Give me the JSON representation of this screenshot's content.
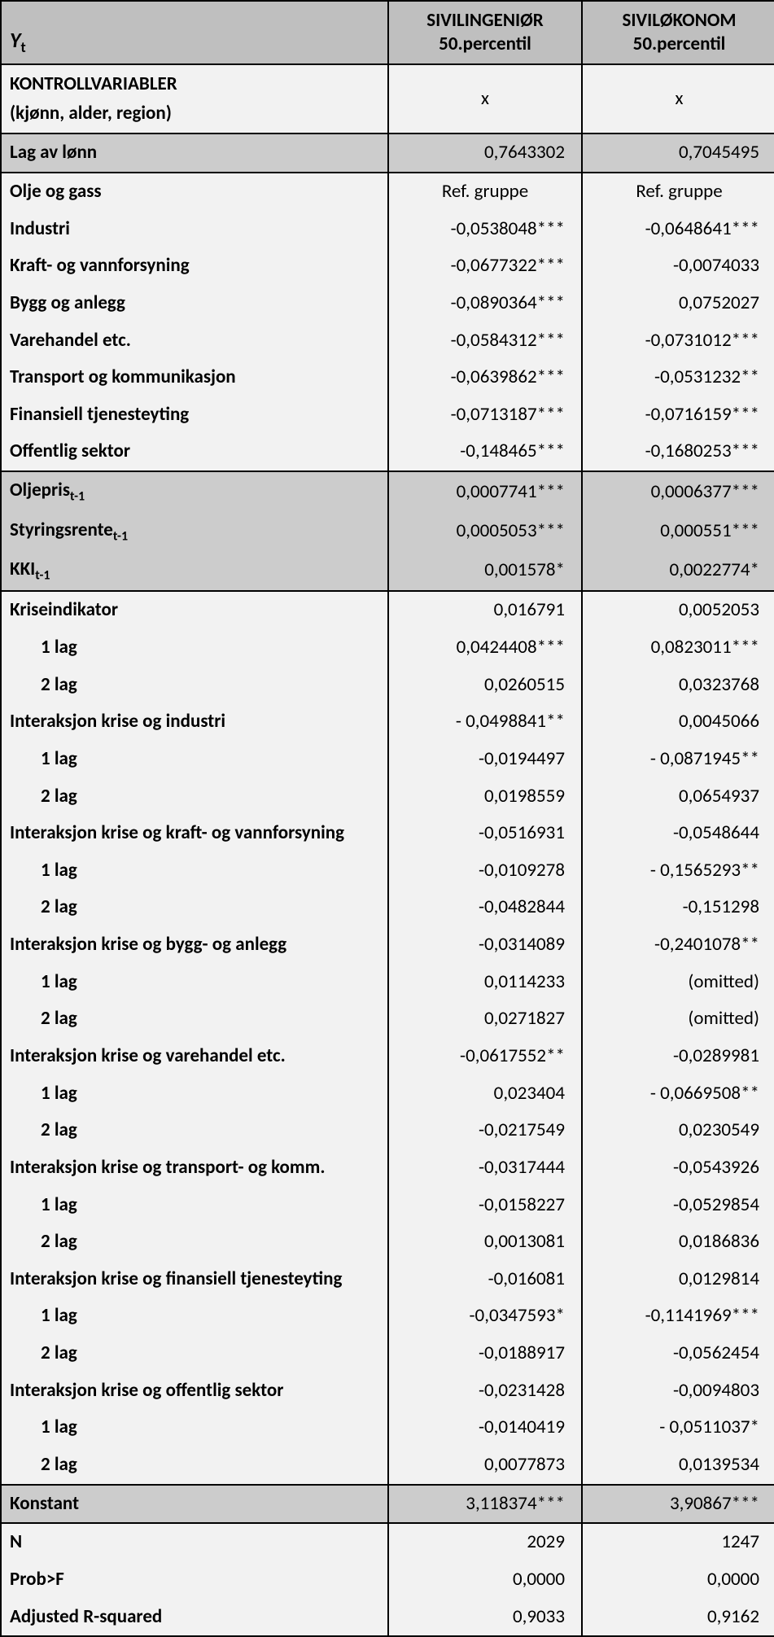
{
  "header": {
    "yt_label_html": "Y",
    "col1_line1": "SIVILINGENIØR",
    "col1_line2": "50.percentil",
    "col2_line1": "SIVILØKONOM",
    "col2_line2": "50.percentil"
  },
  "colors": {
    "header_bg": "#bfbfbf",
    "shade_bg": "#cccccc",
    "light_bg": "#f2f2f2",
    "border": "#000000",
    "text": "#000000"
  },
  "fonts": {
    "family": "Calibri, Arial, sans-serif",
    "size_body": 23,
    "size_yt": 26,
    "size_sub": 16,
    "weight_label": "bold",
    "weight_val": "normal"
  },
  "rows": [
    {
      "label_line1": "KONTROLLVARIABLER",
      "label_line2": "(kjønn, alder, region)",
      "c1": "x",
      "c2": "x",
      "shade": "light",
      "center": true,
      "twoline": true,
      "divider": true
    },
    {
      "label": "Lag av lønn",
      "c1": "0,7643302",
      "c2": "0,7045495",
      "shade": "shade",
      "divider": true
    },
    {
      "label": "Olje og gass",
      "c1": "Ref. gruppe",
      "c2": "Ref. gruppe",
      "shade": "light",
      "center": true
    },
    {
      "label": "Industri",
      "c1": "-0,0538048***",
      "c2": "-0,0648641***",
      "shade": "light"
    },
    {
      "label": "Kraft- og vannforsyning",
      "c1": "-0,0677322***",
      "c2": "-0,0074033",
      "shade": "light"
    },
    {
      "label": "Bygg og anlegg",
      "c1": "-0,0890364***",
      "c2": "0,0752027",
      "shade": "light"
    },
    {
      "label": "Varehandel etc.",
      "c1": "-0,0584312***",
      "c2": "-0,0731012***",
      "shade": "light"
    },
    {
      "label": "Transport og kommunikasjon",
      "c1": "-0,0639862***",
      "c2": "-0,0531232**",
      "shade": "light"
    },
    {
      "label": "Finansiell tjenesteyting",
      "c1": "-0,0713187***",
      "c2": "-0,0716159***",
      "shade": "light"
    },
    {
      "label": "Offentlig sektor",
      "c1": "-0,148465***",
      "c2": "-0,1680253***",
      "shade": "light",
      "divider": true
    },
    {
      "label": "Oljepris",
      "sub": "t-1",
      "c1": "0,0007741***",
      "c2": "0,0006377***",
      "shade": "shade"
    },
    {
      "label": "Styringsrente",
      "sub": "t-1",
      "c1": "0,0005053***",
      "c2": "0,000551***",
      "shade": "shade"
    },
    {
      "label": "KKI",
      "sub": "t-1",
      "c1": "0,001578*",
      "c2": "0,0022774*",
      "shade": "shade",
      "divider": true
    },
    {
      "label": "Kriseindikator",
      "c1": "0,016791",
      "c2": "0,0052053",
      "shade": "light"
    },
    {
      "label": "1 lag",
      "c1": "0,0424408***",
      "c2": "0,0823011***",
      "shade": "light",
      "indent": true
    },
    {
      "label": "2 lag",
      "c1": "0,0260515",
      "c2": "0,0323768",
      "shade": "light",
      "indent": true
    },
    {
      "label": "Interaksjon krise og industri",
      "c1": "- 0,0498841**",
      "c2": "0,0045066",
      "shade": "light"
    },
    {
      "label": "1 lag",
      "c1": "-0,0194497",
      "c2": "- 0,0871945**",
      "shade": "light",
      "indent": true
    },
    {
      "label": "2 lag",
      "c1": "0,0198559",
      "c2": "0,0654937",
      "shade": "light",
      "indent": true
    },
    {
      "label": "Interaksjon krise og kraft- og vannforsyning",
      "c1": "-0,0516931",
      "c2": "-0,0548644",
      "shade": "light"
    },
    {
      "label": "1 lag",
      "c1": "-0,0109278",
      "c2": "- 0,1565293**",
      "shade": "light",
      "indent": true
    },
    {
      "label": "2 lag",
      "c1": "-0,0482844",
      "c2": "-0,151298",
      "shade": "light",
      "indent": true
    },
    {
      "label": "Interaksjon krise og bygg- og anlegg",
      "c1": "-0,0314089",
      "c2": "-0,2401078**",
      "shade": "light"
    },
    {
      "label": "1 lag",
      "c1": "0,0114233",
      "c2": "(omitted)",
      "shade": "light",
      "indent": true
    },
    {
      "label": "2 lag",
      "c1": "0,0271827",
      "c2": "(omitted)",
      "shade": "light",
      "indent": true
    },
    {
      "label": "Interaksjon krise og varehandel etc.",
      "c1": "-0,0617552**",
      "c2": "-0,0289981",
      "shade": "light"
    },
    {
      "label": "1 lag",
      "c1": "0,023404",
      "c2": "- 0,0669508**",
      "shade": "light",
      "indent": true
    },
    {
      "label": "2 lag",
      "c1": "-0,0217549",
      "c2": "0,0230549",
      "shade": "light",
      "indent": true
    },
    {
      "label": "Interaksjon krise og transport- og komm.",
      "c1": "-0,0317444",
      "c2": "-0,0543926",
      "shade": "light"
    },
    {
      "label": "1 lag",
      "c1": "-0,0158227",
      "c2": "-0,0529854",
      "shade": "light",
      "indent": true
    },
    {
      "label": "2 lag",
      "c1": "0,0013081",
      "c2": "0,0186836",
      "shade": "light",
      "indent": true
    },
    {
      "label": "Interaksjon krise og finansiell tjenesteyting",
      "c1": "-0,016081",
      "c2": "0,0129814",
      "shade": "light"
    },
    {
      "label": "1 lag",
      "c1": "-0,0347593*",
      "c2": "-0,1141969***",
      "shade": "light",
      "indent": true
    },
    {
      "label": "2 lag",
      "c1": "-0,0188917",
      "c2": "-0,0562454",
      "shade": "light",
      "indent": true
    },
    {
      "label": "Interaksjon krise og offentlig sektor",
      "c1": "-0,0231428",
      "c2": "-0,0094803",
      "shade": "light"
    },
    {
      "label": "1 lag",
      "c1": "-0,0140419",
      "c2": "- 0,0511037*",
      "shade": "light",
      "indent": true
    },
    {
      "label": "2 lag",
      "c1": "0,0077873",
      "c2": "0,0139534",
      "shade": "light",
      "indent": true,
      "divider": true
    },
    {
      "label": "Konstant",
      "c1": "3,118374***",
      "c2": "3,90867***",
      "shade": "shade",
      "divider": true
    },
    {
      "label": "N",
      "c1": "2029",
      "c2": "1247",
      "shade": "light"
    },
    {
      "label": "Prob>F",
      "c1": "0,0000",
      "c2": "0,0000",
      "shade": "light"
    },
    {
      "label": "Adjusted R-squared",
      "c1": "0,9033",
      "c2": "0,9162",
      "shade": "light"
    }
  ]
}
